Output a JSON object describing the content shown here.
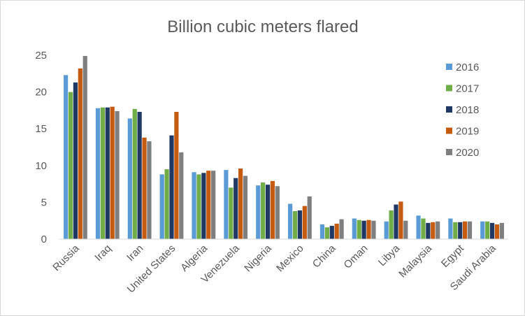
{
  "chart_data": {
    "type": "bar",
    "title": "Billion cubic meters flared",
    "xlabel": "",
    "ylabel": "",
    "ylim": [
      0,
      25
    ],
    "yticks": [
      0,
      5,
      10,
      15,
      20,
      25
    ],
    "grid": "none",
    "legend_position": "right",
    "categories": [
      "Russia",
      "Iraq",
      "Iran",
      "United States",
      "Algeria",
      "Venezuela",
      "Nigeria",
      "Mexico",
      "China",
      "Oman",
      "Libya",
      "Malaysia",
      "Egypt",
      "Saudi Arabia"
    ],
    "series": [
      {
        "name": "2016",
        "color": "#5b9bd5",
        "values": [
          22.3,
          17.8,
          16.4,
          8.8,
          9.1,
          9.4,
          7.3,
          4.8,
          2.0,
          2.8,
          2.4,
          3.2,
          2.8,
          2.4
        ]
      },
      {
        "name": "2017",
        "color": "#70ad47",
        "values": [
          20.0,
          17.9,
          17.7,
          9.5,
          8.8,
          7.0,
          7.7,
          3.8,
          1.6,
          2.6,
          3.9,
          2.8,
          2.3,
          2.4
        ]
      },
      {
        "name": "2018",
        "color": "#203864",
        "values": [
          21.3,
          17.9,
          17.3,
          14.1,
          9.0,
          8.3,
          7.4,
          3.9,
          1.8,
          2.5,
          4.7,
          2.2,
          2.3,
          2.2
        ]
      },
      {
        "name": "2019",
        "color": "#c55a11",
        "values": [
          23.2,
          18.0,
          13.8,
          17.3,
          9.3,
          9.6,
          7.9,
          4.5,
          2.1,
          2.6,
          5.1,
          2.3,
          2.4,
          2.0
        ]
      },
      {
        "name": "2020",
        "color": "#7f7f7f",
        "values": [
          24.9,
          17.4,
          13.3,
          11.8,
          9.3,
          8.6,
          7.2,
          5.8,
          2.7,
          2.5,
          2.5,
          2.4,
          2.4,
          2.2
        ]
      }
    ]
  }
}
